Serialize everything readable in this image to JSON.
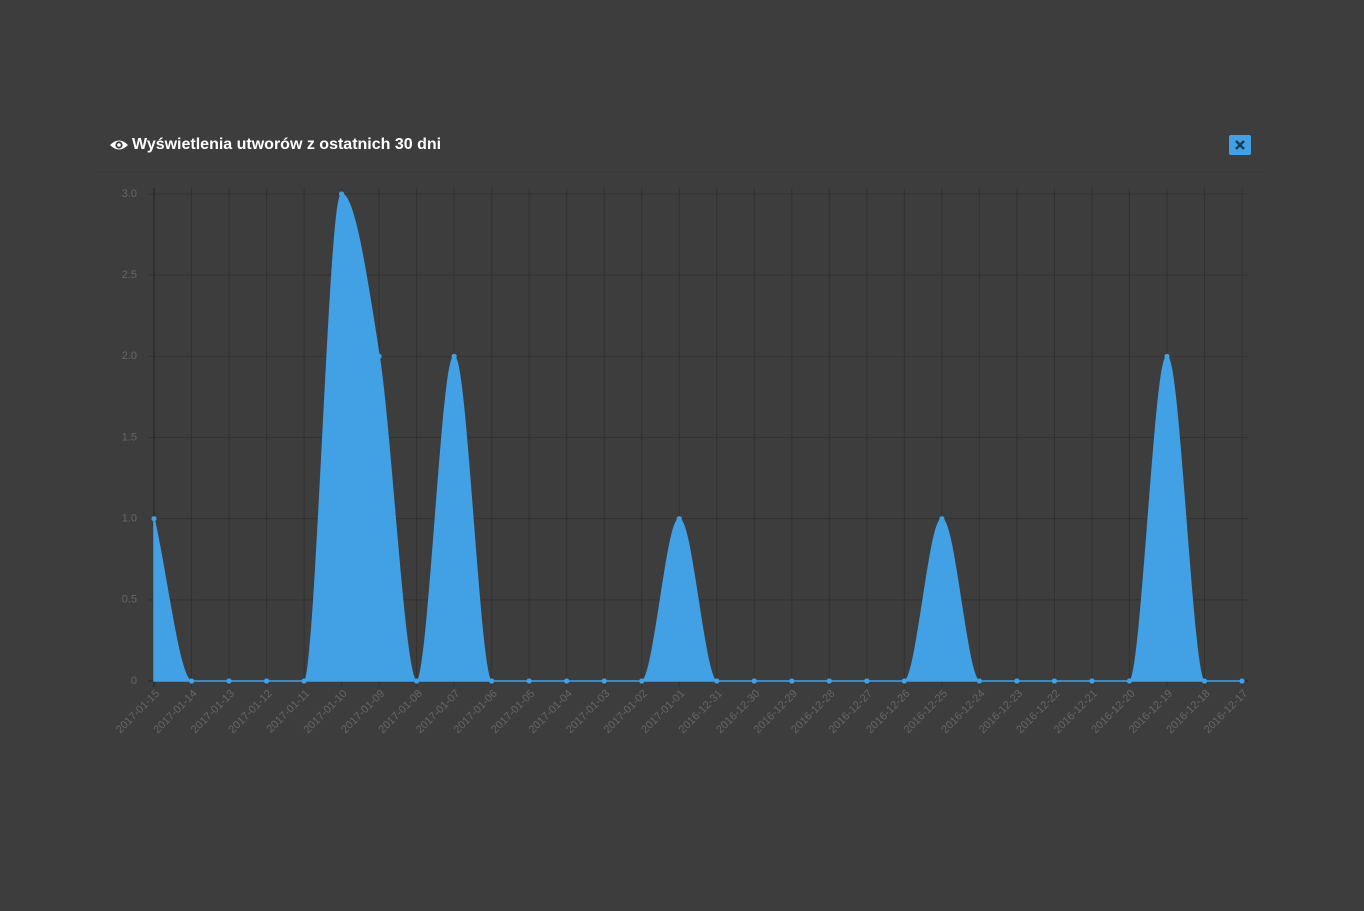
{
  "header": {
    "title": "Wyświetlenia utworów z ostatnich 30 dni"
  },
  "chart_data": {
    "type": "area",
    "categories": [
      "2017-01-15",
      "2017-01-14",
      "2017-01-13",
      "2017-01-12",
      "2017-01-11",
      "2017-01-10",
      "2017-01-09",
      "2017-01-08",
      "2017-01-07",
      "2017-01-06",
      "2017-01-05",
      "2017-01-04",
      "2017-01-03",
      "2017-01-02",
      "2017-01-01",
      "2016-12-31",
      "2016-12-30",
      "2016-12-29",
      "2016-12-28",
      "2016-12-27",
      "2016-12-26",
      "2016-12-25",
      "2016-12-24",
      "2016-12-23",
      "2016-12-22",
      "2016-12-21",
      "2016-12-20",
      "2016-12-19",
      "2016-12-18",
      "2016-12-17"
    ],
    "values": [
      1,
      0,
      0,
      0,
      0,
      3,
      2,
      0,
      2,
      0,
      0,
      0,
      0,
      0,
      1,
      0,
      0,
      0,
      0,
      0,
      0,
      1,
      0,
      0,
      0,
      0,
      0,
      2,
      0,
      0
    ],
    "color": "#42a1e5",
    "ylim": [
      0,
      3
    ],
    "yticks": [
      0,
      0.5,
      {
        "value": 1,
        "label": "1.0"
      },
      1.5,
      {
        "value": 2,
        "label": "2.0"
      },
      2.5,
      {
        "value": 3,
        "label": "3.0"
      }
    ],
    "grid": true
  }
}
